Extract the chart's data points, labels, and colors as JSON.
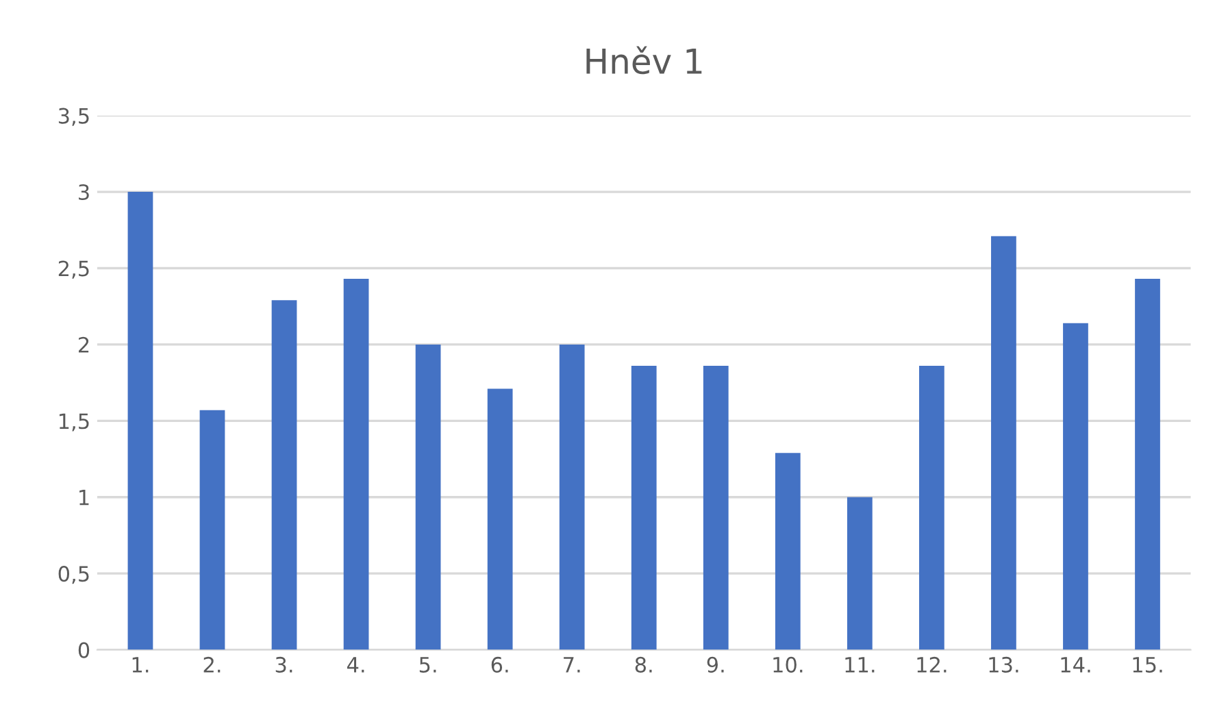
{
  "chart_data": {
    "type": "bar",
    "title": "Hněv 1",
    "categories": [
      "1.",
      "2.",
      "3.",
      "4.",
      "5.",
      "6.",
      "7.",
      "8.",
      "9.",
      "10.",
      "11.",
      "12.",
      "13.",
      "14.",
      "15."
    ],
    "values": [
      3.0,
      1.57,
      2.29,
      2.43,
      2.0,
      1.71,
      2.0,
      1.86,
      1.86,
      1.29,
      1.0,
      1.86,
      2.71,
      2.14,
      2.43
    ],
    "color": "#4472c4",
    "ylim": [
      0,
      3.5
    ],
    "yticks": [
      {
        "value": 0,
        "label": "0"
      },
      {
        "value": 0.5,
        "label": "0,5"
      },
      {
        "value": 1,
        "label": "1"
      },
      {
        "value": 1.5,
        "label": "1,5"
      },
      {
        "value": 2,
        "label": "2"
      },
      {
        "value": 2.5,
        "label": "2,5"
      },
      {
        "value": 3,
        "label": "3"
      },
      {
        "value": 3.5,
        "label": "3,5"
      }
    ],
    "grid": "y",
    "legend": false
  }
}
